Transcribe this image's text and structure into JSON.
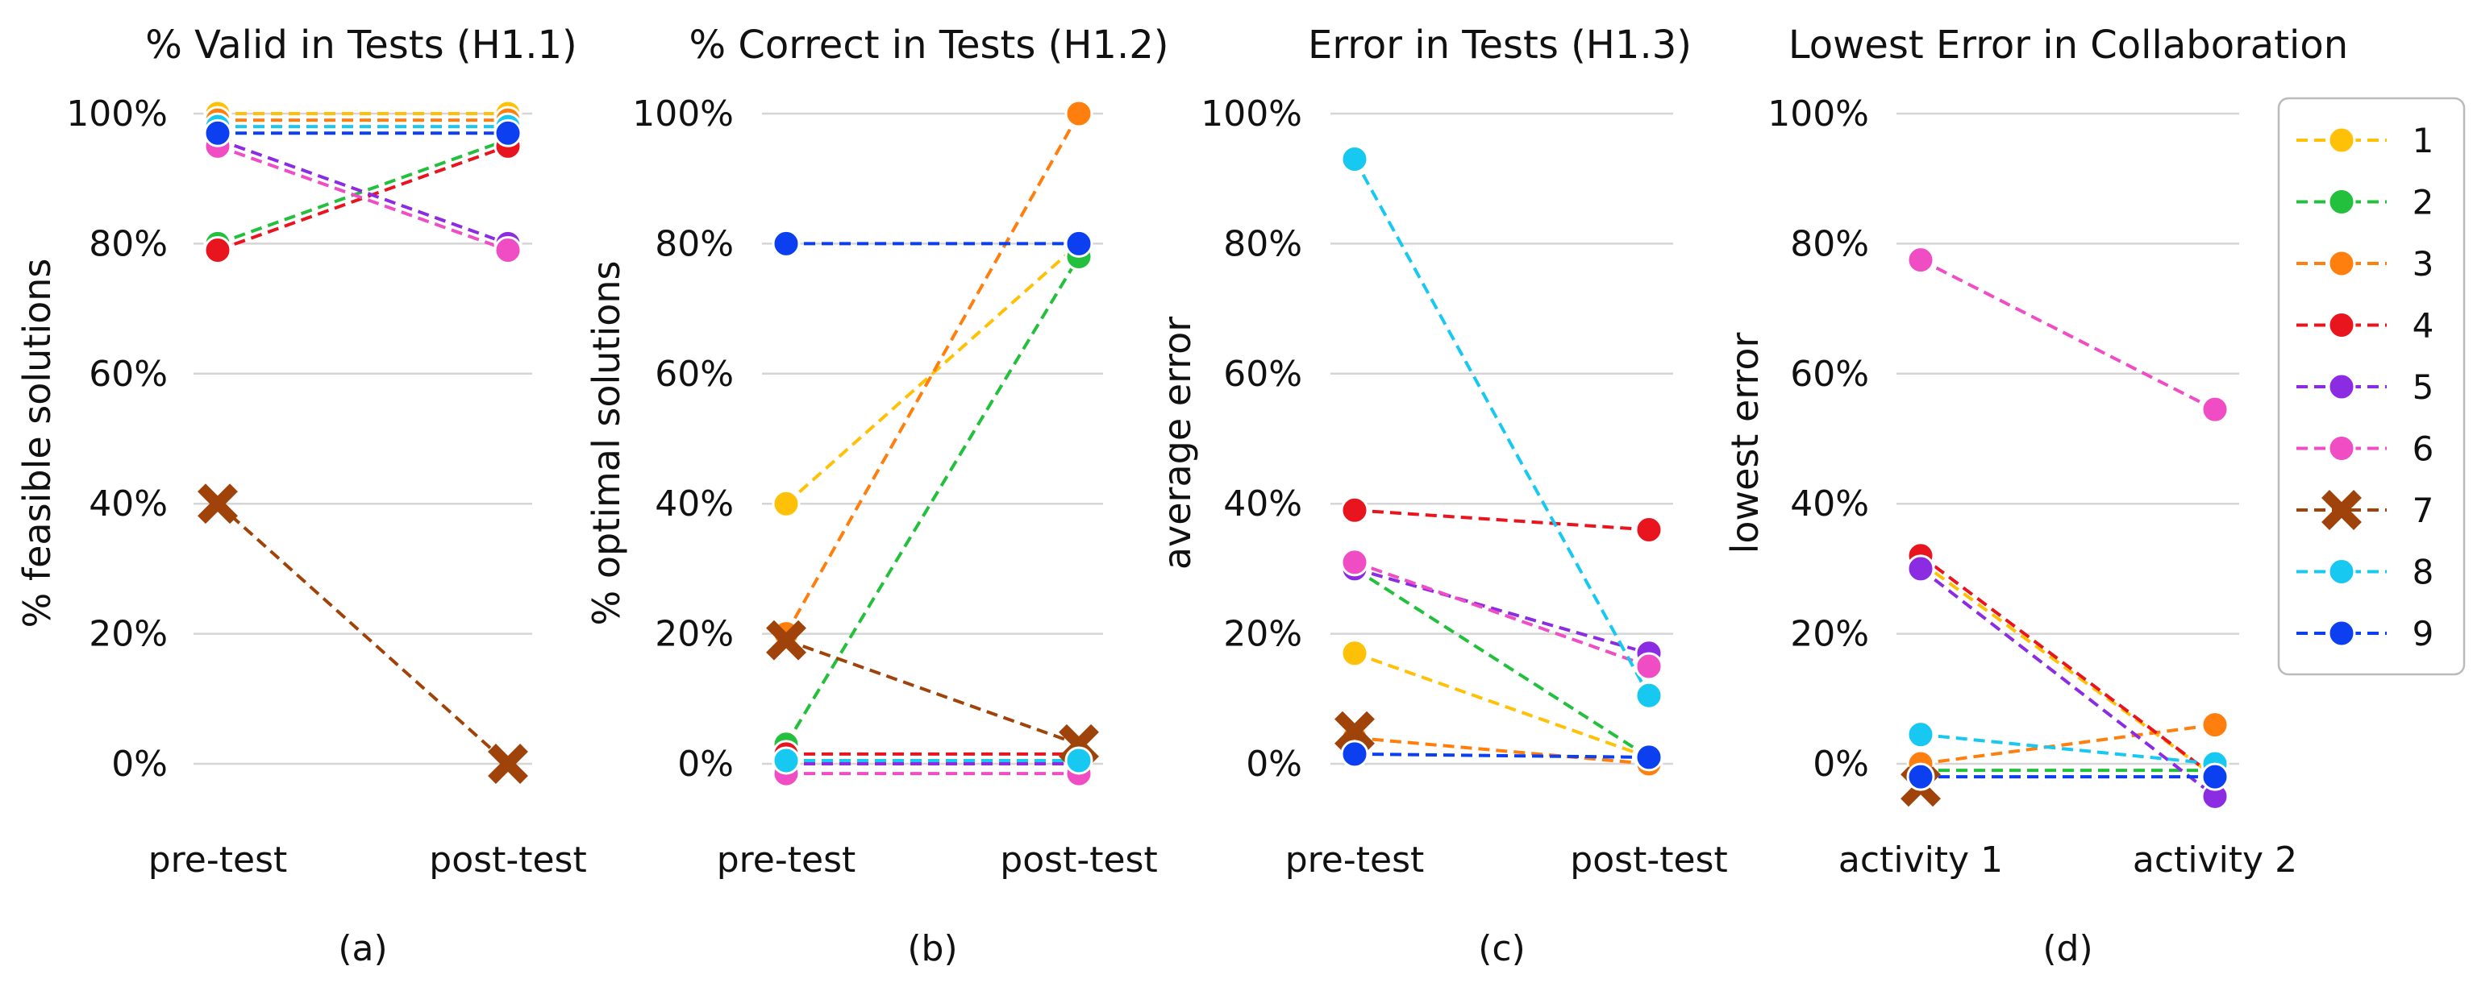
{
  "chart_data": [
    {
      "type": "line",
      "title": "% Valid in Tests (H1.1)",
      "ylabel": "% feasible solutions",
      "xlabel": "",
      "subfigure": "(a)",
      "categories": [
        "pre-test",
        "post-test"
      ],
      "ylim": [
        -8,
        105
      ],
      "yticks": [
        "0%",
        "20%",
        "40%",
        "60%",
        "80%",
        "100%"
      ],
      "series": [
        {
          "name": "1",
          "values": [
            100,
            100
          ]
        },
        {
          "name": "2",
          "values": [
            80,
            96
          ]
        },
        {
          "name": "3",
          "values": [
            99,
            99
          ]
        },
        {
          "name": "4",
          "values": [
            79,
            95
          ]
        },
        {
          "name": "5",
          "values": [
            96,
            80
          ]
        },
        {
          "name": "6",
          "values": [
            95,
            79
          ]
        },
        {
          "name": "7",
          "values": [
            40,
            0
          ]
        },
        {
          "name": "8",
          "values": [
            98,
            98
          ]
        },
        {
          "name": "9",
          "values": [
            97,
            97
          ]
        }
      ]
    },
    {
      "type": "line",
      "title": "% Correct in Tests (H1.2)",
      "ylabel": "% optimal solutions",
      "xlabel": "",
      "subfigure": "(b)",
      "categories": [
        "pre-test",
        "post-test"
      ],
      "ylim": [
        -8,
        105
      ],
      "yticks": [
        "0%",
        "20%",
        "40%",
        "60%",
        "80%",
        "100%"
      ],
      "series": [
        {
          "name": "1",
          "values": [
            40,
            80
          ]
        },
        {
          "name": "2",
          "values": [
            3,
            78
          ]
        },
        {
          "name": "3",
          "values": [
            20,
            100
          ]
        },
        {
          "name": "4",
          "values": [
            1.5,
            1.5
          ]
        },
        {
          "name": "5",
          "values": [
            0,
            0
          ]
        },
        {
          "name": "6",
          "values": [
            -1.5,
            -1.5
          ]
        },
        {
          "name": "7",
          "values": [
            19,
            3
          ]
        },
        {
          "name": "8",
          "values": [
            0.5,
            0.5
          ]
        },
        {
          "name": "9",
          "values": [
            80,
            80
          ]
        }
      ]
    },
    {
      "type": "line",
      "title": "Error in Tests (H1.3)",
      "ylabel": "average error",
      "xlabel": "",
      "subfigure": "(c)",
      "categories": [
        "pre-test",
        "post-test"
      ],
      "ylim": [
        -8,
        105
      ],
      "yticks": [
        "0%",
        "20%",
        "40%",
        "60%",
        "80%",
        "100%"
      ],
      "series": [
        {
          "name": "1",
          "values": [
            17,
            1
          ]
        },
        {
          "name": "2",
          "values": [
            30,
            1
          ]
        },
        {
          "name": "3",
          "values": [
            4,
            0
          ]
        },
        {
          "name": "4",
          "values": [
            39,
            36
          ]
        },
        {
          "name": "5",
          "values": [
            30,
            17
          ]
        },
        {
          "name": "6",
          "values": [
            31,
            15
          ]
        },
        {
          "name": "7",
          "values": [
            5,
            null
          ]
        },
        {
          "name": "8",
          "values": [
            93,
            10.5
          ]
        },
        {
          "name": "9",
          "values": [
            1.5,
            1
          ]
        }
      ]
    },
    {
      "type": "line",
      "title": "Lowest Error in Collaboration",
      "ylabel": "lowest error",
      "xlabel": "",
      "subfigure": "(d)",
      "categories": [
        "activity 1",
        "activity 2"
      ],
      "ylim": [
        -8,
        105
      ],
      "yticks": [
        "0%",
        "20%",
        "40%",
        "60%",
        "80%",
        "100%"
      ],
      "series": [
        {
          "name": "1",
          "values": [
            31,
            -2
          ]
        },
        {
          "name": "2",
          "values": [
            -1,
            -1
          ]
        },
        {
          "name": "3",
          "values": [
            0,
            6
          ]
        },
        {
          "name": "4",
          "values": [
            32,
            -2
          ]
        },
        {
          "name": "5",
          "values": [
            30,
            -5
          ]
        },
        {
          "name": "6",
          "values": [
            77.5,
            54.5
          ]
        },
        {
          "name": "7",
          "values": [
            -3.5,
            null
          ]
        },
        {
          "name": "8",
          "values": [
            4.5,
            0
          ]
        },
        {
          "name": "9",
          "values": [
            -2,
            -2
          ]
        }
      ]
    }
  ],
  "legend": {
    "position": "right",
    "entries": [
      {
        "label": "1",
        "color": "#FFC107",
        "marker": "circle"
      },
      {
        "label": "2",
        "color": "#22C03C",
        "marker": "circle"
      },
      {
        "label": "3",
        "color": "#FF7F0E",
        "marker": "circle"
      },
      {
        "label": "4",
        "color": "#E8141E",
        "marker": "circle"
      },
      {
        "label": "5",
        "color": "#8B2BE2",
        "marker": "circle"
      },
      {
        "label": "6",
        "color": "#F04CC4",
        "marker": "circle"
      },
      {
        "label": "7",
        "color": "#A0430A",
        "marker": "x"
      },
      {
        "label": "8",
        "color": "#17C8F0",
        "marker": "circle"
      },
      {
        "label": "9",
        "color": "#0B3FF0",
        "marker": "circle"
      }
    ]
  }
}
